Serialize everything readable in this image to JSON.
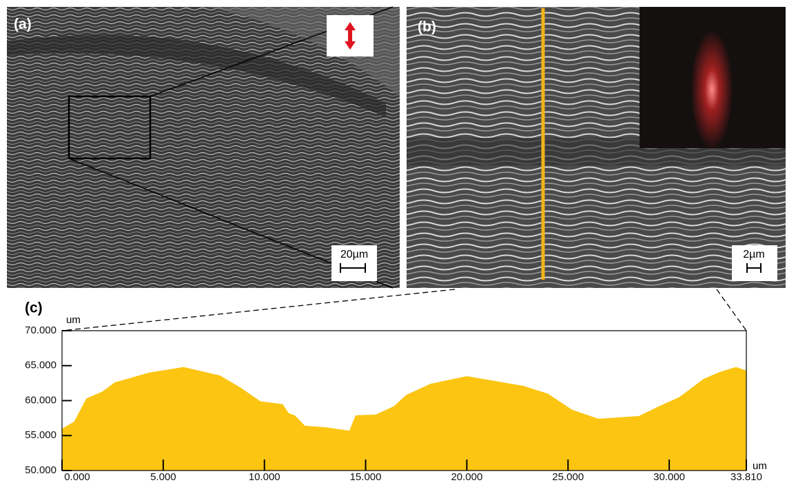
{
  "panels": {
    "a": {
      "label": "(a)",
      "scale_bar": "20µm"
    },
    "b": {
      "label": "(b)",
      "scale_bar": "2µm"
    },
    "c": {
      "label": "(c)"
    }
  },
  "chart_data": {
    "type": "area",
    "y_unit": "um",
    "x_unit": "um",
    "color": "#fbc512",
    "x": [
      0,
      0.6,
      1.2,
      2.0,
      2.6,
      4.3,
      6.0,
      7.8,
      8.8,
      9.8,
      10.9,
      11.2,
      11.5,
      12.0,
      13.0,
      14.2,
      14.5,
      15.5,
      16.4,
      17.0,
      18.2,
      20.0,
      22.8,
      24.0,
      25.2,
      26.5,
      28.5,
      29.5,
      30.5,
      31.7,
      32.5,
      33.3,
      33.81
    ],
    "values": [
      56.0,
      57.0,
      60.3,
      61.3,
      62.6,
      64.0,
      64.8,
      63.6,
      61.9,
      59.9,
      59.5,
      58.2,
      57.9,
      56.4,
      56.2,
      55.7,
      57.9,
      58.0,
      59.2,
      60.8,
      62.4,
      63.5,
      62.1,
      61.0,
      58.7,
      57.4,
      57.8,
      59.2,
      60.5,
      63.1,
      64.1,
      64.8,
      64.3
    ],
    "xlim": [
      0,
      33.81
    ],
    "ylim": [
      50,
      70
    ],
    "xticks": [
      {
        "value": 0,
        "label": "0.000"
      },
      {
        "value": 5,
        "label": "5.000"
      },
      {
        "value": 10,
        "label": "10.000"
      },
      {
        "value": 15,
        "label": "15.000"
      },
      {
        "value": 20,
        "label": "20.000"
      },
      {
        "value": 25,
        "label": "25.000"
      },
      {
        "value": 30,
        "label": "30.000"
      },
      {
        "value": 33.81,
        "label": "33.810"
      }
    ],
    "yticks": [
      {
        "value": 50,
        "label": "50.000"
      },
      {
        "value": 55,
        "label": "55.000"
      },
      {
        "value": 60,
        "label": "60.000"
      },
      {
        "value": 65,
        "label": "65.000"
      },
      {
        "value": 70,
        "label": "70.000"
      }
    ]
  }
}
